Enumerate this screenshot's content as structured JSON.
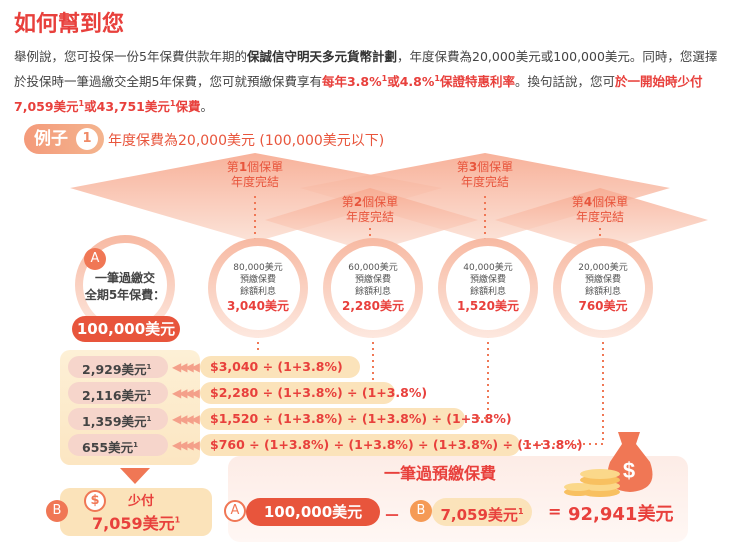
{
  "title": "如何幫到您",
  "paragraph": {
    "t1": "舉例說，您可投保一份5年保費供款年期的",
    "plan": "保誠信守明天多元貨幣計劃",
    "t2": "，年度保費為20,000美元或100,000美元。同時，您選擇於投保時一筆過繳交全期5年保費，您可就預繳保費享有",
    "rates_a": "每年3.8%",
    "sup1": "1",
    "rates_or": "或",
    "rates_b": "4.8%",
    "sup2": "1",
    "rates_c": "保證特惠利率",
    "t3": "。換句話說，您可",
    "save_a": "於一開始時少付7,059美元",
    "sup3": "1",
    "save_or": "或",
    "save_b": "43,751美元",
    "sup4": "1",
    "save_c": "保費",
    "t4": "。"
  },
  "example": {
    "label": "例子",
    "number": "1",
    "text": "年度保費為20,000美元 (100,000美元以下)"
  },
  "years": [
    {
      "pre": "第",
      "num": "1",
      "post": "個保單",
      "line2": "年度完結"
    },
    {
      "pre": "第",
      "num": "2",
      "post": "個保單",
      "line2": "年度完結"
    },
    {
      "pre": "第",
      "num": "3",
      "post": "個保單",
      "line2": "年度完結"
    },
    {
      "pre": "第",
      "num": "4",
      "post": "個保單",
      "line2": "年度完結"
    }
  ],
  "main_circle": {
    "badge": "A",
    "line1": "一筆過繳交",
    "line2": "全期5年保費：",
    "amount": "100,000美元"
  },
  "circles": [
    {
      "amount": "80,000美元",
      "l1": "預繳保費",
      "l2": "餘額利息",
      "interest": "3,040美元"
    },
    {
      "amount": "60,000美元",
      "l1": "預繳保費",
      "l2": "餘額利息",
      "interest": "2,280美元"
    },
    {
      "amount": "40,000美元",
      "l1": "預繳保費",
      "l2": "餘額利息",
      "interest": "1,520美元"
    },
    {
      "amount": "20,000美元",
      "l1": "預繳保費",
      "l2": "餘額利息",
      "interest": "760美元"
    }
  ],
  "rows": [
    {
      "value": "2,929美元",
      "sup": "1",
      "formula": "$3,040 ÷ (1+3.8%)"
    },
    {
      "value": "2,116美元",
      "sup": "1",
      "formula": "$2,280 ÷ (1+3.8%) ÷ (1+3.8%)"
    },
    {
      "value": "1,359美元",
      "sup": "1",
      "formula": "$1,520 ÷ (1+3.8%) ÷ (1+3.8%) ÷ (1+3.8%)"
    },
    {
      "value": "655美元",
      "sup": "1",
      "formula": "$760 ÷ (1+3.8%) ÷ (1+3.8%) ÷ (1+3.8%) ÷ (1+3.8%)"
    }
  ],
  "arrow_glyphs": "◀◀◀◀",
  "less_pay": {
    "badge": "B",
    "dollar": "$",
    "label": "少付",
    "amount": "7,059美元",
    "sup": "1"
  },
  "summary": {
    "title": "一筆過預繳保費",
    "a_badge": "A",
    "a_amount": "100,000美元",
    "minus": "－",
    "b_badge": "B",
    "b_amount": "7,059美元",
    "b_sup": "1",
    "equals": "=",
    "total": "92,941美元"
  },
  "colors": {
    "accent": "#e8403c",
    "salmon": "#f07755",
    "peach": "#fbe3ba",
    "pink": "#f6d5cb"
  },
  "icons": [
    "money-bag-icon",
    "coin-stack-icon",
    "dollar-coin-icon",
    "double-left-arrows-icon"
  ]
}
